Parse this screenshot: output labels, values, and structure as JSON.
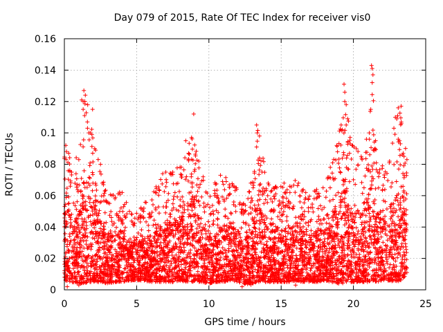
{
  "chart_data": {
    "type": "scatter",
    "title": "Day 079 of 2015, Rate Of TEC Index for receiver vis0",
    "xlabel": "GPS time / hours",
    "ylabel": "ROTI / TECUs",
    "xlim": [
      0,
      25
    ],
    "ylim": [
      0,
      0.16
    ],
    "xticks": [
      0,
      5,
      10,
      15,
      20,
      25
    ],
    "xtick_labels": [
      "0",
      "5",
      "10",
      "15",
      "20",
      "25"
    ],
    "yticks": [
      0,
      0.02,
      0.04,
      0.06,
      0.08,
      0.1,
      0.12,
      0.14,
      0.16
    ],
    "ytick_labels": [
      "0",
      "0.02",
      "0.04",
      "0.06",
      "0.08",
      "0.1",
      "0.12",
      "0.14",
      "0.16"
    ],
    "grid": true,
    "marker": "plus",
    "series_color": "#ff0000",
    "series": [
      {
        "name": "ROTI",
        "envelope": {
          "x": [
            0,
            0.5,
            1.0,
            1.4,
            1.7,
            2.0,
            2.5,
            3.0,
            3.5,
            4.0,
            4.5,
            5.0,
            5.5,
            6.0,
            6.5,
            7.0,
            7.5,
            8.0,
            8.5,
            8.8,
            9.2,
            9.5,
            10.0,
            10.5,
            11.0,
            11.5,
            12.0,
            12.5,
            13.0,
            13.4,
            14.0,
            14.5,
            15.0,
            15.5,
            16.0,
            16.5,
            17.0,
            17.5,
            18.0,
            18.5,
            19.0,
            19.4,
            19.8,
            20.2,
            20.6,
            21.0,
            21.3,
            21.6,
            22.0,
            22.5,
            22.9,
            23.3,
            23.7
          ],
          "upper": [
            0.09,
            0.085,
            0.085,
            0.127,
            0.115,
            0.1,
            0.075,
            0.065,
            0.06,
            0.065,
            0.05,
            0.05,
            0.055,
            0.06,
            0.07,
            0.075,
            0.075,
            0.08,
            0.095,
            0.112,
            0.085,
            0.075,
            0.06,
            0.07,
            0.073,
            0.07,
            0.065,
            0.055,
            0.07,
            0.105,
            0.07,
            0.065,
            0.07,
            0.065,
            0.07,
            0.065,
            0.06,
            0.065,
            0.065,
            0.08,
            0.1,
            0.13,
            0.095,
            0.09,
            0.085,
            0.1,
            0.143,
            0.09,
            0.08,
            0.085,
            0.11,
            0.117,
            0.085
          ],
          "lower": [
            0.006,
            0.005,
            0.004,
            0.004,
            0.005,
            0.005,
            0.005,
            0.004,
            0.005,
            0.005,
            0.006,
            0.006,
            0.006,
            0.005,
            0.005,
            0.005,
            0.005,
            0.006,
            0.005,
            0.005,
            0.005,
            0.005,
            0.004,
            0.005,
            0.005,
            0.006,
            0.005,
            0.004,
            0.003,
            0.005,
            0.005,
            0.005,
            0.005,
            0.005,
            0.006,
            0.005,
            0.005,
            0.005,
            0.006,
            0.005,
            0.004,
            0.004,
            0.005,
            0.005,
            0.005,
            0.005,
            0.006,
            0.005,
            0.006,
            0.006,
            0.005,
            0.006,
            0.01
          ]
        },
        "points": [
          [
            0.1,
            0.092
          ],
          [
            0.3,
            0.087
          ],
          [
            0.5,
            0.075
          ],
          [
            1.0,
            0.083
          ],
          [
            1.2,
            0.121
          ],
          [
            1.3,
            0.12
          ],
          [
            1.35,
            0.127
          ],
          [
            1.45,
            0.124
          ],
          [
            1.3,
            0.115
          ],
          [
            1.4,
            0.111
          ],
          [
            1.6,
            0.103
          ],
          [
            1.7,
            0.1
          ],
          [
            1.8,
            0.1
          ],
          [
            1.9,
            0.099
          ],
          [
            1.95,
            0.115
          ],
          [
            2.1,
            0.09
          ],
          [
            2.5,
            0.08
          ],
          [
            2.8,
            0.063
          ],
          [
            3.5,
            0.058
          ],
          [
            4.0,
            0.062
          ],
          [
            4.5,
            0.05
          ],
          [
            5.5,
            0.052
          ],
          [
            6.3,
            0.062
          ],
          [
            6.8,
            0.074
          ],
          [
            7.5,
            0.075
          ],
          [
            8.0,
            0.078
          ],
          [
            8.4,
            0.095
          ],
          [
            8.6,
            0.087
          ],
          [
            8.8,
            0.097
          ],
          [
            8.95,
            0.112
          ],
          [
            9.3,
            0.082
          ],
          [
            9.6,
            0.072
          ],
          [
            10.4,
            0.06
          ],
          [
            10.8,
            0.073
          ],
          [
            11.2,
            0.069
          ],
          [
            11.9,
            0.065
          ],
          [
            12.4,
            0.055
          ],
          [
            12.9,
            0.068
          ],
          [
            13.3,
            0.105
          ],
          [
            13.35,
            0.1
          ],
          [
            13.3,
            0.091
          ],
          [
            13.5,
            0.084
          ],
          [
            14.1,
            0.068
          ],
          [
            14.7,
            0.065
          ],
          [
            15.2,
            0.068
          ],
          [
            15.6,
            0.066
          ],
          [
            16.2,
            0.068
          ],
          [
            16.7,
            0.062
          ],
          [
            17.3,
            0.063
          ],
          [
            17.9,
            0.065
          ],
          [
            18.4,
            0.078
          ],
          [
            18.9,
            0.088
          ],
          [
            19.15,
            0.105
          ],
          [
            19.35,
            0.131
          ],
          [
            19.4,
            0.12
          ],
          [
            19.5,
            0.118
          ],
          [
            19.6,
            0.109
          ],
          [
            19.5,
            0.105
          ],
          [
            19.9,
            0.092
          ],
          [
            20.2,
            0.09
          ],
          [
            20.6,
            0.083
          ],
          [
            20.9,
            0.096
          ],
          [
            21.1,
            0.1
          ],
          [
            21.25,
            0.143
          ],
          [
            21.3,
            0.141
          ],
          [
            21.35,
            0.137
          ],
          [
            21.3,
            0.132
          ],
          [
            21.2,
            0.115
          ],
          [
            21.5,
            0.09
          ],
          [
            22.0,
            0.079
          ],
          [
            22.5,
            0.082
          ],
          [
            22.8,
            0.103
          ],
          [
            22.9,
            0.11
          ],
          [
            23.1,
            0.116
          ],
          [
            23.3,
            0.117
          ],
          [
            23.1,
            0.096
          ],
          [
            23.5,
            0.085
          ],
          [
            23.7,
            0.083
          ],
          [
            0.2,
            0.002
          ],
          [
            12.3,
            0.002
          ],
          [
            1.0,
            0.003
          ],
          [
            16.0,
            0.003
          ],
          [
            23.7,
            0.011
          ]
        ]
      }
    ]
  }
}
